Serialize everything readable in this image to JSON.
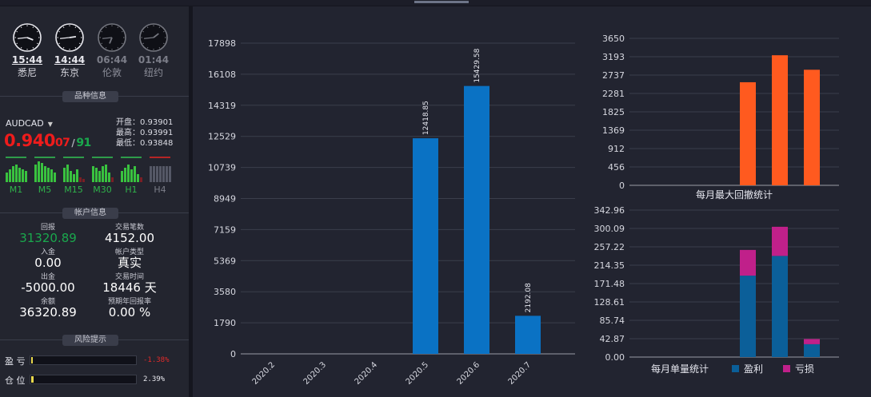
{
  "clocks": [
    {
      "time": "15:44",
      "city": "悉尼",
      "active": true,
      "h": 15,
      "m": 44
    },
    {
      "time": "14:44",
      "city": "东京",
      "active": true,
      "h": 14,
      "m": 44
    },
    {
      "time": "06:44",
      "city": "伦敦",
      "active": false,
      "h": 6,
      "m": 44
    },
    {
      "time": "01:44",
      "city": "纽约",
      "active": false,
      "h": 1,
      "m": 44
    }
  ],
  "symbol_info": {
    "section_title": "品种信息",
    "symbol": "AUDCAD",
    "price_main": "0.940",
    "price_small": "07",
    "price_slash": "/",
    "price_green": "91",
    "open_label": "开盘：",
    "open": "0.93901",
    "high_label": "最高：",
    "high": "0.93991",
    "low_label": "最低：",
    "low": "0.93848",
    "timeframes": [
      {
        "label": "M1",
        "active": true
      },
      {
        "label": "M5",
        "active": true
      },
      {
        "label": "M15",
        "active": true
      },
      {
        "label": "M30",
        "active": true
      },
      {
        "label": "H1",
        "active": true
      },
      {
        "label": "H4",
        "active": false
      }
    ]
  },
  "account": {
    "section_title": "帐户信息",
    "items": [
      {
        "key": "回报",
        "value": "31320.89",
        "green": true
      },
      {
        "key": "交易笔数",
        "value": "4152.00"
      },
      {
        "key": "入金",
        "value": "0.00"
      },
      {
        "key": "帐户类型",
        "value": "真实"
      },
      {
        "key": "出金",
        "value": "-5000.00"
      },
      {
        "key": "交易时间",
        "value": "18446 天"
      },
      {
        "key": "余额",
        "value": "36320.89"
      },
      {
        "key": "预期年回报率",
        "value": "0.00 %"
      }
    ]
  },
  "risk": {
    "section_title": "风险提示",
    "rows": [
      {
        "label": "盈 亏",
        "value": "-1.38%",
        "color": "#e02a2a",
        "fill": 0.0138
      },
      {
        "label": "仓 位",
        "value": "2.39%",
        "color": "#e8e8ee",
        "fill": 0.0239
      }
    ]
  },
  "chart_data": [
    {
      "type": "bar",
      "categories": [
        "2020.2",
        "2020.3",
        "2020.4",
        "2020.5",
        "2020.6",
        "2020.7"
      ],
      "values": [
        0,
        0,
        0,
        12418.85,
        15429.58,
        2192.08
      ],
      "value_labels": [
        "",
        "",
        "",
        "12418.85",
        "15429.58",
        "2192.08"
      ],
      "y_ticks": [
        "0",
        "1790",
        "3580",
        "5369",
        "7159",
        "8949",
        "10739",
        "12529",
        "14319",
        "16108",
        "17898"
      ],
      "ylim": [
        0,
        17898
      ],
      "color": "#0a72c4",
      "grid": true
    },
    {
      "type": "bar",
      "title": "每月最大回撤统计",
      "values": [
        0,
        0,
        0,
        2560,
        3230,
        2870
      ],
      "y_ticks": [
        "0",
        "456",
        "912",
        "1369",
        "1825",
        "2281",
        "2737",
        "3193",
        "3650"
      ],
      "ylim": [
        0,
        3650
      ],
      "color": "#ff5a1f",
      "grid": true
    },
    {
      "type": "bar",
      "title": "每月单量统计",
      "stacked": true,
      "series": [
        {
          "name": "盈利",
          "values": [
            0,
            0,
            0,
            190,
            236,
            30
          ],
          "color": "#0b5f99"
        },
        {
          "name": "亏损",
          "values": [
            0,
            0,
            0,
            60,
            68,
            12
          ],
          "color": "#c0208a"
        }
      ],
      "y_ticks": [
        "0.00",
        "42.87",
        "85.74",
        "128.61",
        "171.48",
        "214.35",
        "257.22",
        "300.09",
        "342.96"
      ],
      "ylim": [
        0,
        342.96
      ],
      "grid": true
    }
  ]
}
